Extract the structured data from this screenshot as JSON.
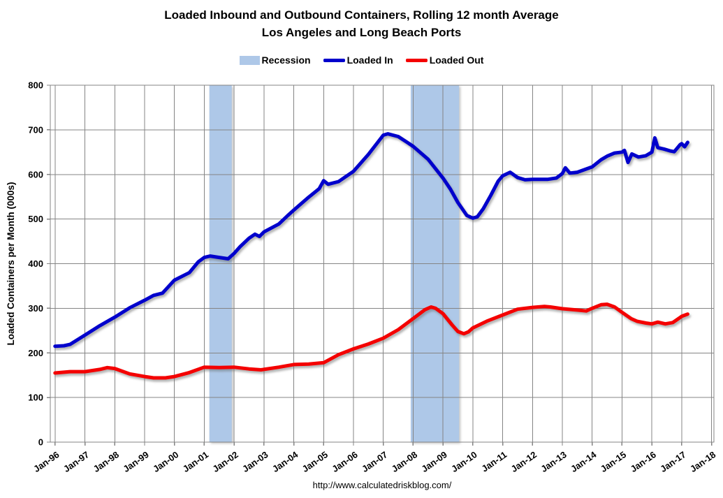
{
  "header": {
    "title_line1": "Loaded Inbound and Outbound Containers, Rolling 12 month Average",
    "title_line2": "Los Angeles and Long Beach Ports"
  },
  "legend": {
    "recession_label": "Recession",
    "loaded_in_label": "Loaded In",
    "loaded_out_label": "Loaded Out"
  },
  "footer": {
    "url_text": "http://www.calculatedriskblog.com/"
  },
  "colors": {
    "loaded_in": "#0000CC",
    "loaded_out": "#F40000",
    "recession_band": "#AEC8E8",
    "grid": "#848484",
    "text": "#000000",
    "background": "#FFFFFF"
  },
  "chart_data": {
    "type": "line",
    "title": "Loaded Inbound and Outbound Containers, Rolling 12 month Average — Los Angeles and Long Beach Ports",
    "xlabel": "",
    "ylabel": "Loaded Containers per Month (000s)",
    "ylim": [
      0,
      800
    ],
    "ytick_step": 100,
    "ytick_labels": [
      "0",
      "100",
      "200",
      "300",
      "400",
      "500",
      "600",
      "700",
      "800"
    ],
    "xlim_years": [
      1995.84,
      2018.08
    ],
    "xtick_years": [
      1996,
      1997,
      1998,
      1999,
      2000,
      2001,
      2002,
      2003,
      2004,
      2005,
      2006,
      2007,
      2008,
      2009,
      2010,
      2011,
      2012,
      2013,
      2014,
      2015,
      2016,
      2017,
      2018
    ],
    "xtick_labels": [
      "Jan-96",
      "Jan-97",
      "Jan-98",
      "Jan-99",
      "Jan-00",
      "Jan-01",
      "Jan-02",
      "Jan-03",
      "Jan-04",
      "Jan-05",
      "Jan-06",
      "Jan-07",
      "Jan-08",
      "Jan-09",
      "Jan-10",
      "Jan-11",
      "Jan-12",
      "Jan-13",
      "Jan-14",
      "Jan-15",
      "Jan-16",
      "Jan-17",
      "Jan-18"
    ],
    "grid": true,
    "legend_position": "top",
    "recession_bands": [
      [
        2001.17,
        2001.92
      ],
      [
        2007.92,
        2009.54
      ]
    ],
    "series": [
      {
        "name": "Loaded In",
        "color": "#0000CC",
        "points": [
          [
            1996.0,
            215
          ],
          [
            1996.3,
            216
          ],
          [
            1996.5,
            219
          ],
          [
            1997.0,
            240
          ],
          [
            1997.5,
            261
          ],
          [
            1998.0,
            280
          ],
          [
            1998.5,
            301
          ],
          [
            1999.0,
            318
          ],
          [
            1999.3,
            329
          ],
          [
            1999.6,
            334
          ],
          [
            2000.0,
            363
          ],
          [
            2000.5,
            380
          ],
          [
            2000.8,
            404
          ],
          [
            2001.0,
            414
          ],
          [
            2001.2,
            417
          ],
          [
            2001.5,
            414
          ],
          [
            2001.8,
            411
          ],
          [
            2002.0,
            423
          ],
          [
            2002.2,
            438
          ],
          [
            2002.5,
            457
          ],
          [
            2002.7,
            466
          ],
          [
            2002.85,
            461
          ],
          [
            2003.0,
            471
          ],
          [
            2003.5,
            489
          ],
          [
            2003.8,
            508
          ],
          [
            2004.0,
            520
          ],
          [
            2004.5,
            549
          ],
          [
            2004.85,
            568
          ],
          [
            2005.0,
            586
          ],
          [
            2005.15,
            578
          ],
          [
            2005.5,
            584
          ],
          [
            2006.0,
            607
          ],
          [
            2006.5,
            645
          ],
          [
            2007.0,
            688
          ],
          [
            2007.15,
            691
          ],
          [
            2007.5,
            685
          ],
          [
            2007.8,
            672
          ],
          [
            2008.0,
            663
          ],
          [
            2008.5,
            634
          ],
          [
            2009.0,
            592
          ],
          [
            2009.25,
            567
          ],
          [
            2009.5,
            537
          ],
          [
            2009.8,
            508
          ],
          [
            2010.0,
            502
          ],
          [
            2010.15,
            505
          ],
          [
            2010.35,
            523
          ],
          [
            2010.6,
            553
          ],
          [
            2010.85,
            585
          ],
          [
            2011.0,
            597
          ],
          [
            2011.25,
            605
          ],
          [
            2011.5,
            593
          ],
          [
            2011.75,
            588
          ],
          [
            2012.0,
            589
          ],
          [
            2012.5,
            589
          ],
          [
            2012.8,
            592
          ],
          [
            2013.0,
            602
          ],
          [
            2013.1,
            615
          ],
          [
            2013.25,
            603
          ],
          [
            2013.5,
            605
          ],
          [
            2014.0,
            617
          ],
          [
            2014.3,
            633
          ],
          [
            2014.5,
            641
          ],
          [
            2014.75,
            648
          ],
          [
            2015.0,
            650
          ],
          [
            2015.08,
            654
          ],
          [
            2015.2,
            627
          ],
          [
            2015.33,
            646
          ],
          [
            2015.55,
            639
          ],
          [
            2015.8,
            642
          ],
          [
            2016.0,
            650
          ],
          [
            2016.1,
            682
          ],
          [
            2016.2,
            660
          ],
          [
            2016.4,
            657
          ],
          [
            2016.6,
            653
          ],
          [
            2016.75,
            651
          ],
          [
            2016.95,
            667
          ],
          [
            2017.0,
            669
          ],
          [
            2017.1,
            662
          ],
          [
            2017.2,
            672
          ]
        ]
      },
      {
        "name": "Loaded Out",
        "color": "#F40000",
        "points": [
          [
            1996.0,
            155
          ],
          [
            1996.5,
            158
          ],
          [
            1997.0,
            158
          ],
          [
            1997.5,
            163
          ],
          [
            1997.75,
            167
          ],
          [
            1998.0,
            165
          ],
          [
            1998.5,
            153
          ],
          [
            1999.0,
            147
          ],
          [
            1999.3,
            144
          ],
          [
            1999.7,
            144
          ],
          [
            2000.0,
            147
          ],
          [
            2000.5,
            156
          ],
          [
            2001.0,
            168
          ],
          [
            2001.5,
            167
          ],
          [
            2002.0,
            168
          ],
          [
            2002.5,
            164
          ],
          [
            2002.9,
            162
          ],
          [
            2003.0,
            163
          ],
          [
            2003.5,
            168
          ],
          [
            2004.0,
            174
          ],
          [
            2004.5,
            175
          ],
          [
            2005.0,
            178
          ],
          [
            2005.5,
            196
          ],
          [
            2006.0,
            209
          ],
          [
            2006.5,
            220
          ],
          [
            2007.0,
            233
          ],
          [
            2007.5,
            252
          ],
          [
            2008.0,
            277
          ],
          [
            2008.4,
            297
          ],
          [
            2008.6,
            303
          ],
          [
            2008.75,
            300
          ],
          [
            2009.0,
            288
          ],
          [
            2009.3,
            263
          ],
          [
            2009.5,
            248
          ],
          [
            2009.7,
            243
          ],
          [
            2009.85,
            247
          ],
          [
            2010.0,
            256
          ],
          [
            2010.5,
            272
          ],
          [
            2011.0,
            285
          ],
          [
            2011.5,
            298
          ],
          [
            2012.0,
            302
          ],
          [
            2012.4,
            304
          ],
          [
            2012.6,
            303
          ],
          [
            2013.0,
            299
          ],
          [
            2013.5,
            296
          ],
          [
            2013.8,
            294
          ],
          [
            2014.0,
            300
          ],
          [
            2014.3,
            308
          ],
          [
            2014.5,
            309
          ],
          [
            2014.75,
            303
          ],
          [
            2015.0,
            291
          ],
          [
            2015.3,
            277
          ],
          [
            2015.5,
            271
          ],
          [
            2015.8,
            267
          ],
          [
            2016.0,
            265
          ],
          [
            2016.2,
            269
          ],
          [
            2016.45,
            265
          ],
          [
            2016.7,
            268
          ],
          [
            2017.0,
            282
          ],
          [
            2017.2,
            287
          ]
        ]
      }
    ]
  }
}
